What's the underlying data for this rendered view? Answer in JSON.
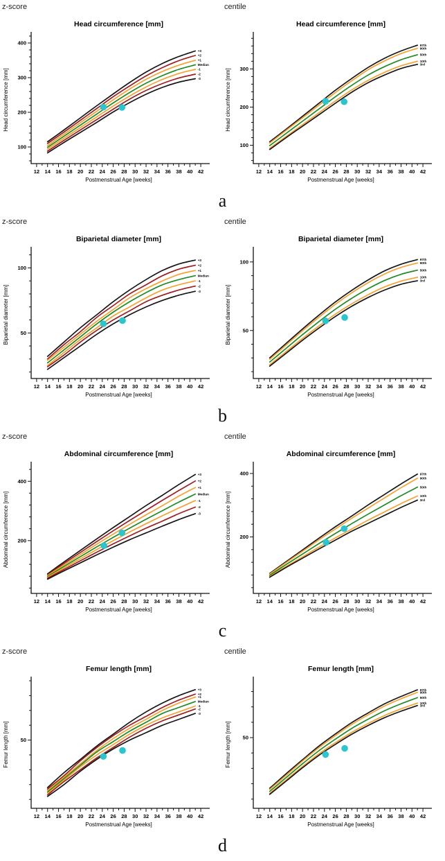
{
  "corner_labels": {
    "left": "z-score",
    "right": "centile"
  },
  "row_labels": [
    "a",
    "b",
    "c",
    "d"
  ],
  "colors": {
    "black": "#161616",
    "red": "#a01d22",
    "orange": "#f6a12f",
    "green": "#1f8b24",
    "point": "#2bc5cf",
    "axis": "#111111"
  },
  "x_axis": {
    "label": "Postmenstrual Age [weeks]",
    "lim": [
      11,
      43
    ],
    "ticks": [
      12,
      14,
      16,
      18,
      20,
      22,
      24,
      26,
      28,
      30,
      32,
      34,
      36,
      38,
      40,
      42
    ],
    "minor_ticks": [
      13,
      15,
      17,
      19,
      21,
      23,
      25,
      27,
      29,
      31,
      33,
      35,
      37,
      39,
      41
    ]
  },
  "weeks": [
    14,
    17,
    20,
    23,
    26,
    29,
    32,
    35,
    38,
    41
  ],
  "chart_data": [
    {
      "row": "a",
      "variant": "z-score",
      "type": "line",
      "title": "Head circumference [mm]",
      "ylabel": "Head circumference [mm]",
      "xlabel": "Postmenstrual Age [weeks]",
      "ylim": [
        52,
        420
      ],
      "yticks": [
        100,
        200,
        300,
        400
      ],
      "yminor_step": 20,
      "series": [
        {
          "name": "+3",
          "color": "black",
          "values": [
            115,
            149,
            184,
            219,
            253,
            286,
            316,
            341,
            361,
            377
          ]
        },
        {
          "name": "+2",
          "color": "red",
          "values": [
            110,
            143,
            177,
            211,
            245,
            276,
            305,
            329,
            349,
            364
          ]
        },
        {
          "name": "+1",
          "color": "orange",
          "values": [
            104,
            137,
            170,
            203,
            236,
            267,
            295,
            318,
            336,
            350
          ]
        },
        {
          "name": "Median",
          "color": "green",
          "values": [
            99,
            131,
            163,
            195,
            227,
            257,
            284,
            306,
            324,
            337
          ]
        },
        {
          "name": "-1",
          "color": "orange",
          "values": [
            94,
            125,
            156,
            187,
            218,
            247,
            273,
            295,
            312,
            324
          ]
        },
        {
          "name": "-2",
          "color": "red",
          "values": [
            88,
            119,
            149,
            179,
            209,
            238,
            263,
            283,
            299,
            310
          ]
        },
        {
          "name": "-3",
          "color": "black",
          "values": [
            83,
            113,
            142,
            171,
            201,
            228,
            252,
            272,
            287,
            297
          ]
        }
      ],
      "points": [
        {
          "x": 24.2,
          "y": 215
        },
        {
          "x": 27.6,
          "y": 214
        }
      ]
    },
    {
      "row": "a",
      "variant": "centile",
      "type": "line",
      "title": "Head circumference [mm]",
      "ylabel": "Head circumference [mm]",
      "xlabel": "Postmenstrual Age [weeks]",
      "ylim": [
        52,
        386
      ],
      "yticks": [
        100,
        200,
        300
      ],
      "yminor_step": 20,
      "series": [
        {
          "name": "97th",
          "color": "black",
          "values": [
            109,
            142,
            176,
            210,
            244,
            275,
            304,
            328,
            347,
            362
          ]
        },
        {
          "name": "90th",
          "color": "orange",
          "values": [
            106,
            139,
            172,
            205,
            238,
            269,
            298,
            321,
            340,
            354
          ]
        },
        {
          "name": "50th",
          "color": "green",
          "values": [
            99,
            131,
            163,
            195,
            227,
            257,
            284,
            306,
            324,
            337
          ]
        },
        {
          "name": "10th",
          "color": "orange",
          "values": [
            92,
            123,
            154,
            185,
            216,
            245,
            270,
            291,
            308,
            320
          ]
        },
        {
          "name": "3rd",
          "color": "black",
          "values": [
            89,
            120,
            150,
            180,
            210,
            239,
            264,
            284,
            301,
            312
          ]
        }
      ],
      "points": [
        {
          "x": 24.2,
          "y": 215
        },
        {
          "x": 27.6,
          "y": 214
        }
      ]
    },
    {
      "row": "b",
      "variant": "z-score",
      "type": "line",
      "title": "Biparietal diameter [mm]",
      "ylabel": "Biparietal diameter [mm]",
      "xlabel": "Postmenstrual Age [weeks]",
      "ylim": [
        15,
        113
      ],
      "yticks": [
        50,
        100
      ],
      "yminor_step": 10,
      "series": [
        {
          "name": "+3",
          "color": "black",
          "values": [
            32,
            43,
            54,
            64,
            74,
            83,
            91,
            98,
            103,
            106
          ]
        },
        {
          "name": "+2",
          "color": "red",
          "values": [
            30,
            41,
            51,
            62,
            71,
            80,
            87,
            94,
            99,
            102
          ]
        },
        {
          "name": "+1",
          "color": "orange",
          "values": [
            29,
            39,
            49,
            59,
            68,
            77,
            84,
            90,
            95,
            98
          ]
        },
        {
          "name": "Median",
          "color": "green",
          "values": [
            27,
            37,
            47,
            57,
            66,
            74,
            81,
            87,
            91,
            94
          ]
        },
        {
          "name": "-1",
          "color": "orange",
          "values": [
            25,
            35,
            45,
            54,
            63,
            70,
            77,
            83,
            87,
            90
          ]
        },
        {
          "name": "-2",
          "color": "red",
          "values": [
            24,
            33,
            43,
            52,
            60,
            67,
            74,
            79,
            83,
            86
          ]
        },
        {
          "name": "-3",
          "color": "black",
          "values": [
            22,
            31,
            40,
            49,
            57,
            64,
            70,
            75,
            79,
            82
          ]
        }
      ],
      "points": [
        {
          "x": 24.2,
          "y": 57
        },
        {
          "x": 27.7,
          "y": 59.5
        }
      ]
    },
    {
      "row": "b",
      "variant": "centile",
      "type": "line",
      "title": "Biparietal diameter [mm]",
      "ylabel": "Biparietal diameter [mm]",
      "xlabel": "Postmenstrual Age [weeks]",
      "ylim": [
        15,
        108
      ],
      "yticks": [
        50,
        100
      ],
      "yminor_step": 10,
      "series": [
        {
          "name": "97th",
          "color": "black",
          "values": [
            30,
            40.6,
            51.1,
            61.2,
            70.8,
            79.3,
            86.9,
            93.5,
            98.3,
            101.7
          ]
        },
        {
          "name": "90th",
          "color": "orange",
          "values": [
            29,
            39.4,
            49.8,
            59.7,
            69.1,
            77.5,
            84.9,
            91.2,
            96,
            99.2
          ]
        },
        {
          "name": "50th",
          "color": "green",
          "values": [
            27,
            37,
            47,
            56.5,
            65.5,
            73.5,
            80.5,
            86.5,
            91,
            94
          ]
        },
        {
          "name": "10th",
          "color": "orange",
          "values": [
            25,
            34.6,
            44.2,
            53.3,
            61.9,
            69.5,
            76.1,
            81.8,
            86,
            88.8
          ]
        },
        {
          "name": "3rd",
          "color": "black",
          "values": [
            24,
            33.4,
            42.9,
            51.8,
            60.2,
            67.7,
            74.1,
            79.5,
            83.7,
            86.3
          ]
        }
      ],
      "points": [
        {
          "x": 24.2,
          "y": 57
        },
        {
          "x": 27.7,
          "y": 59.5
        }
      ]
    },
    {
      "row": "c",
      "variant": "z-score",
      "type": "line",
      "title": "Abdominal circumference [mm]",
      "ylabel": "Abdominal circumference [mm]",
      "xlabel": "Postmenstrual Age [weeks]",
      "ylim": [
        22,
        452
      ],
      "yticks": [
        200,
        400
      ],
      "yminor_step": 40,
      "series": [
        {
          "name": "+3",
          "color": "black",
          "values": [
            88,
            128,
            167,
            206,
            244,
            281,
            318,
            353,
            389,
            423
          ]
        },
        {
          "name": "+2",
          "color": "red",
          "values": [
            85,
            123,
            160,
            197,
            233,
            268,
            302,
            336,
            369,
            401
          ]
        },
        {
          "name": "+1",
          "color": "orange",
          "values": [
            82,
            118,
            153,
            188,
            222,
            255,
            287,
            318,
            350,
            379
          ]
        },
        {
          "name": "Median",
          "color": "green",
          "values": [
            79,
            113,
            146,
            179,
            211,
            242,
            272,
            301,
            330,
            357
          ]
        },
        {
          "name": "-1",
          "color": "orange",
          "values": [
            76,
            108,
            139,
            170,
            200,
            229,
            257,
            284,
            310,
            335
          ]
        },
        {
          "name": "-2",
          "color": "red",
          "values": [
            73,
            103,
            132,
            161,
            189,
            216,
            242,
            266,
            291,
            313
          ]
        },
        {
          "name": "-3",
          "color": "black",
          "values": [
            70,
            98,
            125,
            152,
            178,
            203,
            226,
            249,
            271,
            291
          ]
        }
      ],
      "points": [
        {
          "x": 24.3,
          "y": 183
        },
        {
          "x": 27.6,
          "y": 226
        }
      ]
    },
    {
      "row": "c",
      "variant": "centile",
      "type": "line",
      "title": "Abdominal circumference [mm]",
      "ylabel": "Abdominal circumference [mm]",
      "xlabel": "Postmenstrual Age [weeks]",
      "ylim": [
        22,
        424
      ],
      "yticks": [
        200,
        400
      ],
      "yminor_step": 40,
      "series": [
        {
          "name": "97th",
          "color": "black",
          "values": [
            85,
            122,
            159,
            196,
            232,
            266,
            301,
            334,
            367,
            398
          ]
        },
        {
          "name": "90th",
          "color": "orange",
          "values": [
            83,
            119,
            155,
            191,
            225,
            259,
            291,
            323,
            355,
            385
          ]
        },
        {
          "name": "50th",
          "color": "green",
          "values": [
            79,
            113,
            146,
            179,
            211,
            242,
            272,
            301,
            330,
            357
          ]
        },
        {
          "name": "10th",
          "color": "orange",
          "values": [
            75,
            107,
            137,
            168,
            197,
            225,
            253,
            279,
            305,
            329
          ]
        },
        {
          "name": "3rd",
          "color": "black",
          "values": [
            73,
            104,
            133,
            162,
            190,
            218,
            243,
            268,
            293,
            316
          ]
        }
      ],
      "points": [
        {
          "x": 24.3,
          "y": 183
        },
        {
          "x": 27.6,
          "y": 226
        }
      ]
    },
    {
      "row": "d",
      "variant": "z-score",
      "type": "line",
      "title": "Femur length [mm]",
      "ylabel": "Femur length [mm]",
      "xlabel": "Postmenstrual Age [weeks]",
      "ylim": [
        4,
        90
      ],
      "yticks": [
        50
      ],
      "yminor_step": 10,
      "series": [
        {
          "name": "+3",
          "color": "black",
          "values": [
            18,
            28,
            37,
            46,
            54,
            62,
            69,
            75,
            80,
            84
          ]
        },
        {
          "name": "+2",
          "color": "red",
          "values": [
            17,
            26,
            36,
            45,
            53,
            60,
            66,
            72,
            77,
            81
          ]
        },
        {
          "name": "+1",
          "color": "orange",
          "values": [
            16,
            25,
            34,
            43,
            51,
            58,
            64,
            70,
            75,
            79
          ]
        },
        {
          "name": "Median",
          "color": "green",
          "values": [
            15,
            24,
            33,
            42,
            49,
            56,
            62,
            68,
            72,
            76
          ]
        },
        {
          "name": "-1",
          "color": "orange",
          "values": [
            14,
            23,
            32,
            40,
            47,
            54,
            60,
            65,
            69,
            73
          ]
        },
        {
          "name": "-2",
          "color": "red",
          "values": [
            13,
            22,
            30,
            38,
            45,
            52,
            58,
            63,
            67,
            71
          ]
        },
        {
          "name": "-3",
          "color": "black",
          "values": [
            12,
            20,
            29,
            37,
            44,
            50,
            55,
            60,
            64,
            68
          ]
        }
      ],
      "points": [
        {
          "x": 24.2,
          "y": 39
        },
        {
          "x": 27.7,
          "y": 43
        }
      ]
    },
    {
      "row": "d",
      "variant": "centile",
      "type": "line",
      "title": "Femur length [mm]",
      "ylabel": "Femur length [mm]",
      "xlabel": "Postmenstrual Age [weeks]",
      "ylim": [
        4,
        87
      ],
      "yticks": [
        50
      ],
      "yminor_step": 10,
      "series": [
        {
          "name": "97th",
          "color": "black",
          "values": [
            17,
            26.5,
            35.6,
            44.5,
            52.4,
            59.8,
            66.1,
            72,
            76.8,
            81.1
          ]
        },
        {
          "name": "90th",
          "color": "orange",
          "values": [
            16.3,
            25.5,
            34.8,
            43.5,
            51.3,
            58.6,
            64.8,
            70.6,
            75.3,
            79.5
          ]
        },
        {
          "name": "50th",
          "color": "green",
          "values": [
            15,
            24,
            33,
            41.5,
            49,
            56,
            62,
            67.5,
            72,
            76
          ]
        },
        {
          "name": "10th",
          "color": "orange",
          "values": [
            13.7,
            22.5,
            31.2,
            39.5,
            46.7,
            53.4,
            59.2,
            64.4,
            68.7,
            72.5
          ]
        },
        {
          "name": "3rd",
          "color": "black",
          "values": [
            13.1,
            21.7,
            30.4,
            38.5,
            45.6,
            52.2,
            57.9,
            63,
            67.2,
            70.9
          ]
        }
      ],
      "points": [
        {
          "x": 24.2,
          "y": 39
        },
        {
          "x": 27.7,
          "y": 43
        }
      ]
    }
  ]
}
